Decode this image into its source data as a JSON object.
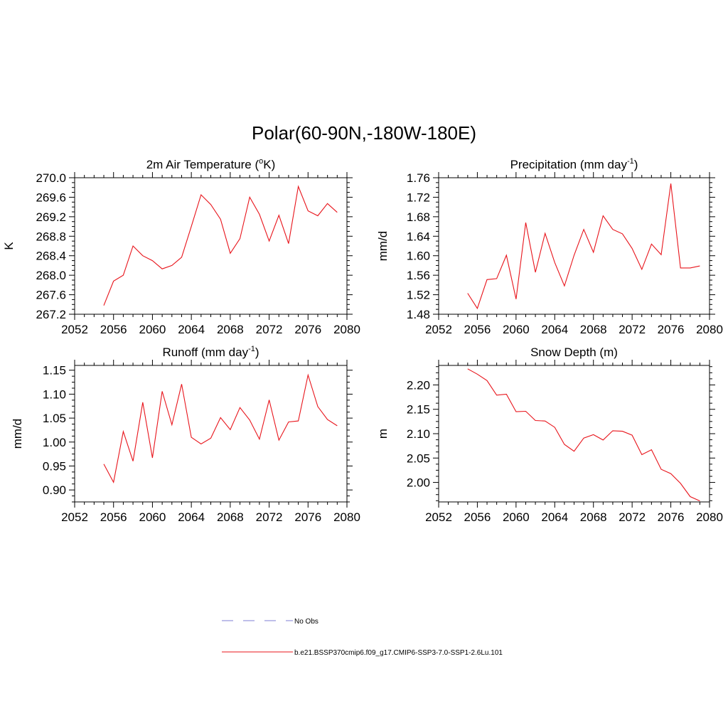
{
  "figure": {
    "title": "Polar(60-90N,-180W-180E)",
    "line_color": "#e8141b",
    "obs_color": "#9999dd"
  },
  "legend": {
    "obs_label": "No Obs",
    "model_label": "b.e21.BSSP370cmip6.f09_g17.CMIP6-SSP3-7.0-SSP1-2.6Lu.101"
  },
  "chart_data": [
    {
      "type": "line",
      "title_main": "2m Air Temperature (",
      "title_sup": "o",
      "title_tail": "K)",
      "ylabel": "K",
      "xlim": [
        2052,
        2080
      ],
      "ylim": [
        267.2,
        270.0
      ],
      "xticks": [
        2052,
        2056,
        2060,
        2064,
        2068,
        2072,
        2076,
        2080
      ],
      "yticks": [
        267.2,
        267.6,
        268.0,
        268.4,
        268.8,
        269.2,
        269.6,
        270.0
      ],
      "ytick_labels": [
        "267.2",
        "267.6",
        "268.0",
        "268.4",
        "268.8",
        "269.2",
        "269.6",
        "270.0"
      ],
      "x": [
        2055,
        2056,
        2057,
        2058,
        2059,
        2060,
        2061,
        2062,
        2063,
        2064,
        2065,
        2066,
        2067,
        2068,
        2069,
        2070,
        2071,
        2072,
        2073,
        2074,
        2075,
        2076,
        2077,
        2078,
        2079
      ],
      "y": [
        267.38,
        267.88,
        268.0,
        268.6,
        268.4,
        268.3,
        268.13,
        268.2,
        268.37,
        269.0,
        269.65,
        269.45,
        269.15,
        268.45,
        268.75,
        269.6,
        269.25,
        268.7,
        269.23,
        268.65,
        269.82,
        269.32,
        269.22,
        269.47,
        269.29
      ]
    },
    {
      "type": "line",
      "title_main": "Precipitation (mm day",
      "title_sup": "-1",
      "title_tail": ")",
      "ylabel": "mm/d",
      "xlim": [
        2052,
        2080
      ],
      "ylim": [
        1.48,
        1.76
      ],
      "xticks": [
        2052,
        2056,
        2060,
        2064,
        2068,
        2072,
        2076,
        2080
      ],
      "yticks": [
        1.48,
        1.52,
        1.56,
        1.6,
        1.64,
        1.68,
        1.72,
        1.76
      ],
      "ytick_labels": [
        "1.48",
        "1.52",
        "1.56",
        "1.60",
        "1.64",
        "1.68",
        "1.72",
        "1.76"
      ],
      "x": [
        2055,
        2056,
        2057,
        2058,
        2059,
        2060,
        2061,
        2062,
        2063,
        2064,
        2065,
        2066,
        2067,
        2068,
        2069,
        2070,
        2071,
        2072,
        2073,
        2074,
        2075,
        2076,
        2077,
        2078,
        2079
      ],
      "y": [
        1.523,
        1.492,
        1.551,
        1.553,
        1.601,
        1.511,
        1.668,
        1.566,
        1.646,
        1.586,
        1.538,
        1.601,
        1.654,
        1.607,
        1.682,
        1.654,
        1.645,
        1.615,
        1.572,
        1.624,
        1.602,
        1.748,
        1.575,
        1.575,
        1.579
      ]
    },
    {
      "type": "line",
      "title_main": "Runoff (mm day",
      "title_sup": "-1",
      "title_tail": ")",
      "ylabel": "mm/d",
      "xlim": [
        2052,
        2080
      ],
      "ylim": [
        0.875,
        1.16
      ],
      "xticks": [
        2052,
        2056,
        2060,
        2064,
        2068,
        2072,
        2076,
        2080
      ],
      "yticks": [
        0.9,
        0.95,
        1.0,
        1.05,
        1.1,
        1.15
      ],
      "ytick_labels": [
        "0.90",
        "0.95",
        "1.00",
        "1.05",
        "1.10",
        "1.15"
      ],
      "x": [
        2055,
        2056,
        2057,
        2058,
        2059,
        2060,
        2061,
        2062,
        2063,
        2064,
        2065,
        2066,
        2067,
        2068,
        2069,
        2070,
        2071,
        2072,
        2073,
        2074,
        2075,
        2076,
        2077,
        2078,
        2079
      ],
      "y": [
        0.954,
        0.916,
        1.022,
        0.96,
        1.083,
        0.967,
        1.106,
        1.036,
        1.121,
        1.01,
        0.996,
        1.008,
        1.051,
        1.026,
        1.072,
        1.046,
        1.006,
        1.088,
        1.004,
        1.042,
        1.044,
        1.14,
        1.074,
        1.047,
        1.034
      ]
    },
    {
      "type": "line",
      "title_main": "Snow Depth (m)",
      "title_sup": "",
      "title_tail": "",
      "ylabel": "m",
      "xlim": [
        2052,
        2080
      ],
      "ylim": [
        1.96,
        2.24
      ],
      "xticks": [
        2052,
        2056,
        2060,
        2064,
        2068,
        2072,
        2076,
        2080
      ],
      "yticks": [
        2.0,
        2.05,
        2.1,
        2.15,
        2.2
      ],
      "ytick_labels": [
        "2.00",
        "2.05",
        "2.10",
        "2.15",
        "2.20"
      ],
      "x": [
        2055,
        2056,
        2057,
        2058,
        2059,
        2060,
        2061,
        2062,
        2063,
        2064,
        2065,
        2066,
        2067,
        2068,
        2069,
        2070,
        2071,
        2072,
        2073,
        2074,
        2075,
        2076,
        2077,
        2078,
        2079
      ],
      "y": [
        2.233,
        2.222,
        2.209,
        2.179,
        2.181,
        2.145,
        2.146,
        2.127,
        2.126,
        2.113,
        2.078,
        2.064,
        2.091,
        2.098,
        2.087,
        2.106,
        2.105,
        2.097,
        2.057,
        2.067,
        2.027,
        2.018,
        1.998,
        1.971,
        1.962
      ]
    }
  ]
}
